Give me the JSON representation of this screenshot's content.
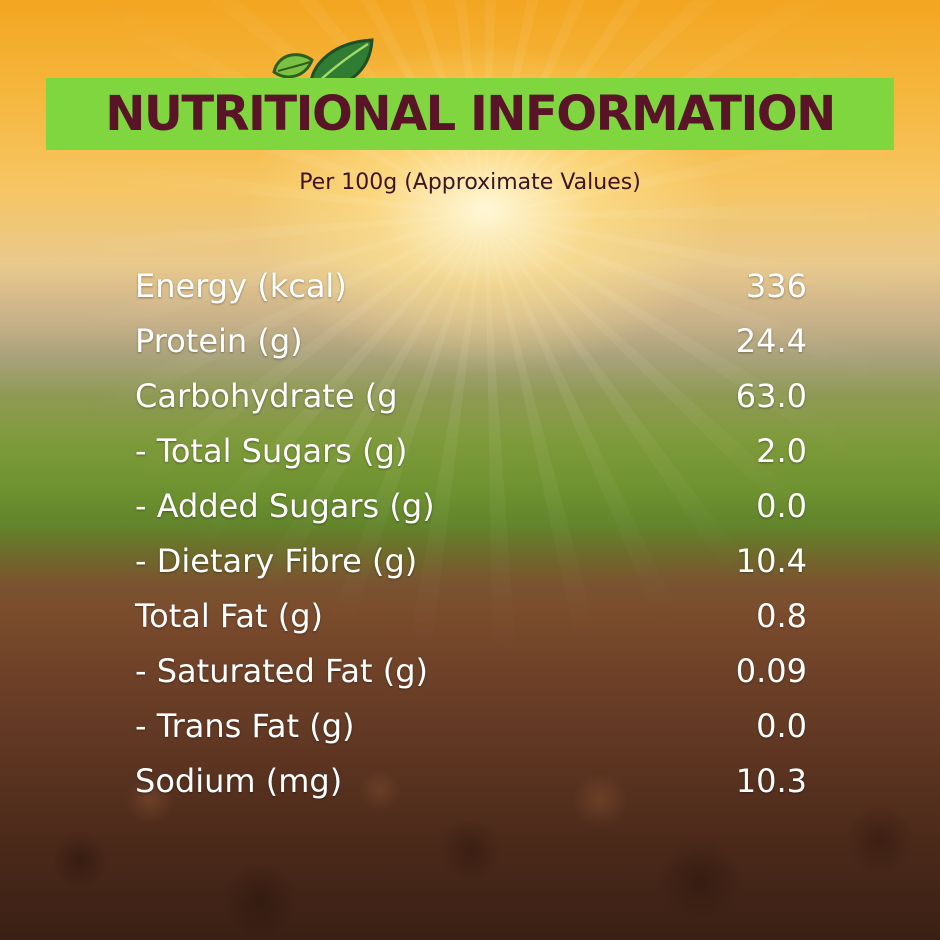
{
  "header": {
    "title": "NUTRITIONAL INFORMATION",
    "subtitle": "Per 100g (Approximate Values)"
  },
  "icons": {
    "logo": "leaf-icon"
  },
  "colors": {
    "title_bar": "#7fd63e",
    "title_text": "#5a1428",
    "subtitle_text": "#3f1420",
    "row_text": "#ffffff",
    "leaf_dark": "#2e7d32",
    "leaf_light": "#7cc242"
  },
  "nutrients": [
    {
      "label": "Energy (kcal)",
      "value": "336"
    },
    {
      "label": "Protein (g)",
      "value": "24.4"
    },
    {
      "label": "Carbohydrate (g",
      "value": "63.0"
    },
    {
      "label": "- Total Sugars (g)",
      "value": "2.0"
    },
    {
      "label": "- Added Sugars (g)",
      "value": "0.0"
    },
    {
      "label": "- Dietary Fibre (g)",
      "value": "10.4"
    },
    {
      "label": "Total Fat (g)",
      "value": "0.8"
    },
    {
      "label": "- Saturated Fat (g)",
      "value": "0.09"
    },
    {
      "label": "- Trans Fat (g)",
      "value": "0.0"
    },
    {
      "label": "Sodium (mg)",
      "value": "10.3"
    }
  ]
}
